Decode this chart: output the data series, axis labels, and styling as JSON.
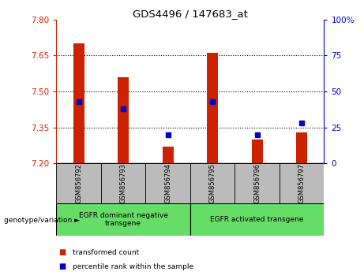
{
  "title": "GDS4496 / 147683_at",
  "samples": [
    "GSM856792",
    "GSM856793",
    "GSM856794",
    "GSM856795",
    "GSM856796",
    "GSM856797"
  ],
  "bar_values": [
    7.7,
    7.56,
    7.27,
    7.66,
    7.3,
    7.33
  ],
  "blue_pct": [
    43,
    38,
    20,
    43,
    20,
    28
  ],
  "bar_base": 7.2,
  "ylim": [
    7.2,
    7.8
  ],
  "yticks_left": [
    7.2,
    7.35,
    7.5,
    7.65,
    7.8
  ],
  "yticks_right": [
    0,
    25,
    50,
    75,
    100
  ],
  "left_color": "#cc2200",
  "right_color": "#0000cc",
  "bar_color": "#cc2200",
  "blue_color": "#0000cc",
  "bar_width": 0.25,
  "groups": [
    {
      "label": "EGFR dominant negative\ntransgene",
      "start": 0,
      "end": 2
    },
    {
      "label": "EGFR activated transgene",
      "start": 3,
      "end": 5
    }
  ],
  "group_color": "#66dd66",
  "xlabel_left": "genotype/variation ►",
  "legend_items": [
    "transformed count",
    "percentile rank within the sample"
  ],
  "tick_area_bg": "#bbbbbb"
}
